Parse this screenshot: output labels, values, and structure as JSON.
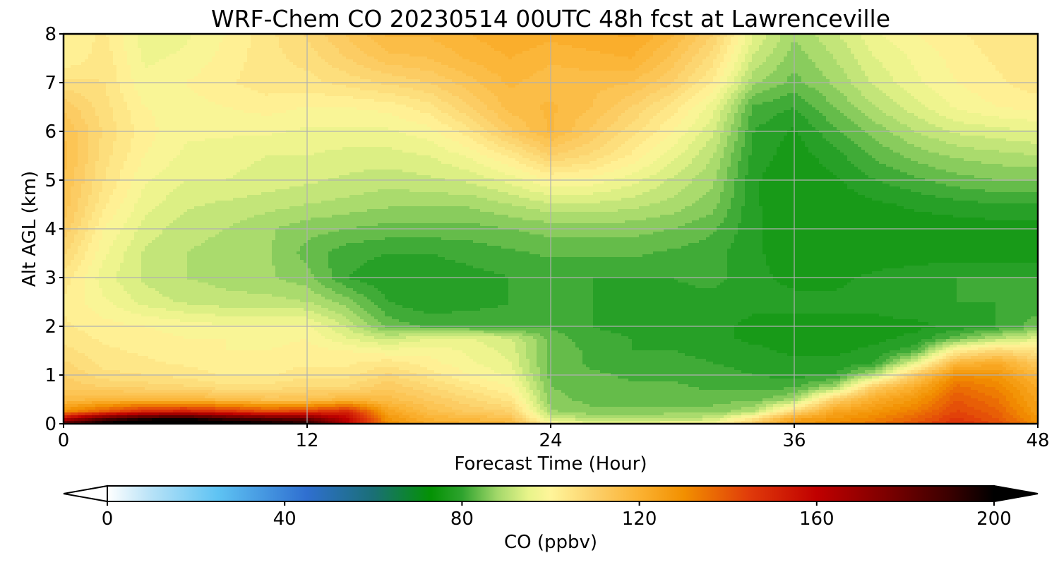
{
  "chart_data": {
    "type": "heatmap",
    "title": "WRF-Chem CO  20230514 00UTC 48h fcst at Lawrenceville",
    "xlabel": "Forecast Time (Hour)",
    "ylabel": "Alt AGL (km)",
    "xlim": [
      0,
      48
    ],
    "ylim": [
      0,
      8
    ],
    "x_ticks": [
      0,
      12,
      24,
      36,
      48
    ],
    "y_ticks": [
      0,
      1,
      2,
      3,
      4,
      5,
      6,
      7,
      8
    ],
    "grid": true,
    "x_hours": [
      0,
      2,
      4,
      6,
      8,
      10,
      12,
      14,
      16,
      18,
      20,
      22,
      24,
      26,
      28,
      30,
      32,
      34,
      36,
      38,
      40,
      42,
      44,
      46,
      48
    ],
    "alt_km": [
      0,
      0.1,
      0.25,
      0.5,
      0.75,
      1,
      1.25,
      1.5,
      1.75,
      2,
      2.5,
      3,
      3.5,
      4,
      4.5,
      5,
      5.5,
      6,
      6.5,
      7,
      7.5,
      8
    ],
    "co_ppbv": [
      [
        185,
        200,
        210,
        210,
        205,
        200,
        195,
        160,
        130,
        122,
        120,
        118,
        100,
        96,
        96,
        97,
        98,
        110,
        126,
        130,
        134,
        140,
        148,
        142,
        130
      ],
      [
        160,
        185,
        195,
        198,
        190,
        185,
        180,
        160,
        128,
        120,
        118,
        115,
        94,
        90,
        90,
        91,
        92,
        105,
        124,
        128,
        132,
        138,
        146,
        140,
        128
      ],
      [
        130,
        140,
        150,
        152,
        148,
        142,
        145,
        150,
        124,
        116,
        112,
        110,
        88,
        86,
        86,
        86,
        86,
        90,
        108,
        124,
        128,
        134,
        143,
        138,
        126
      ],
      [
        116,
        118,
        119,
        118,
        116,
        114,
        114,
        118,
        116,
        112,
        108,
        104,
        86,
        84,
        84,
        84,
        84,
        84,
        88,
        110,
        122,
        128,
        140,
        135,
        124
      ],
      [
        112,
        110,
        109,
        108,
        106,
        106,
        108,
        108,
        112,
        108,
        104,
        100,
        85,
        84,
        83,
        83,
        82,
        82,
        82,
        88,
        112,
        122,
        136,
        132,
        122
      ],
      [
        110,
        106,
        105,
        104,
        102,
        102,
        104,
        104,
        108,
        104,
        100,
        97,
        84,
        83,
        82,
        82,
        81,
        80,
        79,
        80,
        90,
        112,
        130,
        128,
        118
      ],
      [
        108,
        104,
        103,
        102,
        101,
        101,
        102,
        102,
        104,
        101,
        98,
        95,
        84,
        82,
        81,
        81,
        80,
        79,
        78,
        78,
        80,
        95,
        118,
        122,
        112
      ],
      [
        106,
        103,
        102,
        101,
        100,
        100,
        101,
        100,
        98,
        99,
        97,
        94,
        84,
        82,
        80,
        80,
        79,
        78,
        77,
        77,
        78,
        82,
        102,
        108,
        104
      ],
      [
        104,
        102,
        101,
        100,
        100,
        99,
        100,
        95,
        92,
        95,
        95,
        93,
        84,
        81,
        80,
        79,
        78,
        77,
        77,
        77,
        77,
        78,
        84,
        90,
        94
      ],
      [
        103,
        101,
        100,
        99,
        98,
        98,
        98,
        92,
        84,
        82,
        82,
        81,
        82,
        80,
        79,
        78,
        78,
        77,
        77,
        77,
        77,
        77,
        78,
        80,
        84
      ],
      [
        102,
        98,
        94,
        92,
        91,
        91,
        90,
        86,
        80,
        78,
        79,
        80,
        80,
        80,
        79,
        79,
        79,
        78,
        78,
        78,
        78,
        79,
        80,
        80,
        81
      ],
      [
        104,
        96,
        92,
        90,
        89,
        88,
        86,
        80,
        78,
        78,
        79,
        80,
        80,
        80,
        80,
        80,
        81,
        78,
        77,
        77,
        78,
        79,
        80,
        80,
        80
      ],
      [
        108,
        98,
        92,
        90,
        89,
        88,
        84,
        81,
        80,
        80,
        81,
        82,
        83,
        83,
        83,
        82,
        81,
        78,
        76,
        76,
        76,
        76,
        76,
        76,
        76
      ],
      [
        112,
        100,
        94,
        91,
        90,
        88,
        86,
        85,
        84,
        84,
        84,
        85,
        86,
        86,
        86,
        85,
        83,
        78,
        76,
        76,
        76,
        76,
        76,
        76,
        76
      ],
      [
        114,
        103,
        96,
        93,
        92,
        91,
        90,
        89,
        88,
        88,
        88,
        90,
        92,
        92,
        91,
        89,
        86,
        78,
        75,
        76,
        77,
        78,
        79,
        80,
        80
      ],
      [
        115,
        105,
        98,
        95,
        95,
        94,
        93,
        92,
        91,
        92,
        93,
        96,
        100,
        99,
        96,
        92,
        88,
        78,
        75,
        77,
        80,
        82,
        84,
        85,
        85
      ],
      [
        116,
        106,
        100,
        97,
        96,
        95,
        95,
        94,
        94,
        95,
        98,
        103,
        110,
        107,
        102,
        96,
        90,
        79,
        76,
        79,
        83,
        86,
        88,
        89,
        90
      ],
      [
        115,
        107,
        101,
        98,
        98,
        98,
        97,
        97,
        97,
        99,
        104,
        112,
        118,
        112,
        106,
        100,
        93,
        80,
        77,
        82,
        86,
        90,
        93,
        94,
        95
      ],
      [
        112,
        106,
        100,
        99,
        100,
        101,
        100,
        100,
        101,
        104,
        110,
        116,
        118,
        115,
        110,
        104,
        96,
        82,
        80,
        85,
        90,
        94,
        98,
        100,
        101
      ],
      [
        106,
        105,
        98,
        100,
        102,
        104,
        104,
        106,
        108,
        110,
        114,
        118,
        116,
        116,
        115,
        110,
        102,
        88,
        84,
        88,
        93,
        97,
        100,
        102,
        104
      ],
      [
        100,
        104,
        97,
        98,
        101,
        104,
        106,
        110,
        114,
        115,
        118,
        120,
        118,
        119,
        120,
        114,
        106,
        92,
        86,
        90,
        95,
        98,
        101,
        103,
        104
      ],
      [
        100,
        103,
        96,
        97,
        100,
        104,
        108,
        113,
        118,
        118,
        120,
        122,
        121,
        122,
        123,
        118,
        110,
        95,
        88,
        92,
        97,
        100,
        102,
        104,
        105
      ]
    ],
    "colorbar": {
      "label": "CO  (ppbv)",
      "min": 0,
      "max": 200,
      "ticks": [
        0,
        40,
        80,
        120,
        160,
        200
      ],
      "extend": "both",
      "colormap": [
        [
          0,
          "#ffffff"
        ],
        [
          10,
          "#b7e2f7"
        ],
        [
          25,
          "#5ec3f3"
        ],
        [
          45,
          "#2f6fd0"
        ],
        [
          60,
          "#1a6f76"
        ],
        [
          73,
          "#049204"
        ],
        [
          80,
          "#2ea32e"
        ],
        [
          88,
          "#a3d86a"
        ],
        [
          95,
          "#e8f48a"
        ],
        [
          100,
          "#fff59a"
        ],
        [
          110,
          "#fcd06a"
        ],
        [
          120,
          "#fbb232"
        ],
        [
          130,
          "#f29000"
        ],
        [
          145,
          "#e03a0a"
        ],
        [
          160,
          "#c00000"
        ],
        [
          175,
          "#800000"
        ],
        [
          190,
          "#3a0000"
        ],
        [
          200,
          "#000000"
        ]
      ]
    }
  }
}
